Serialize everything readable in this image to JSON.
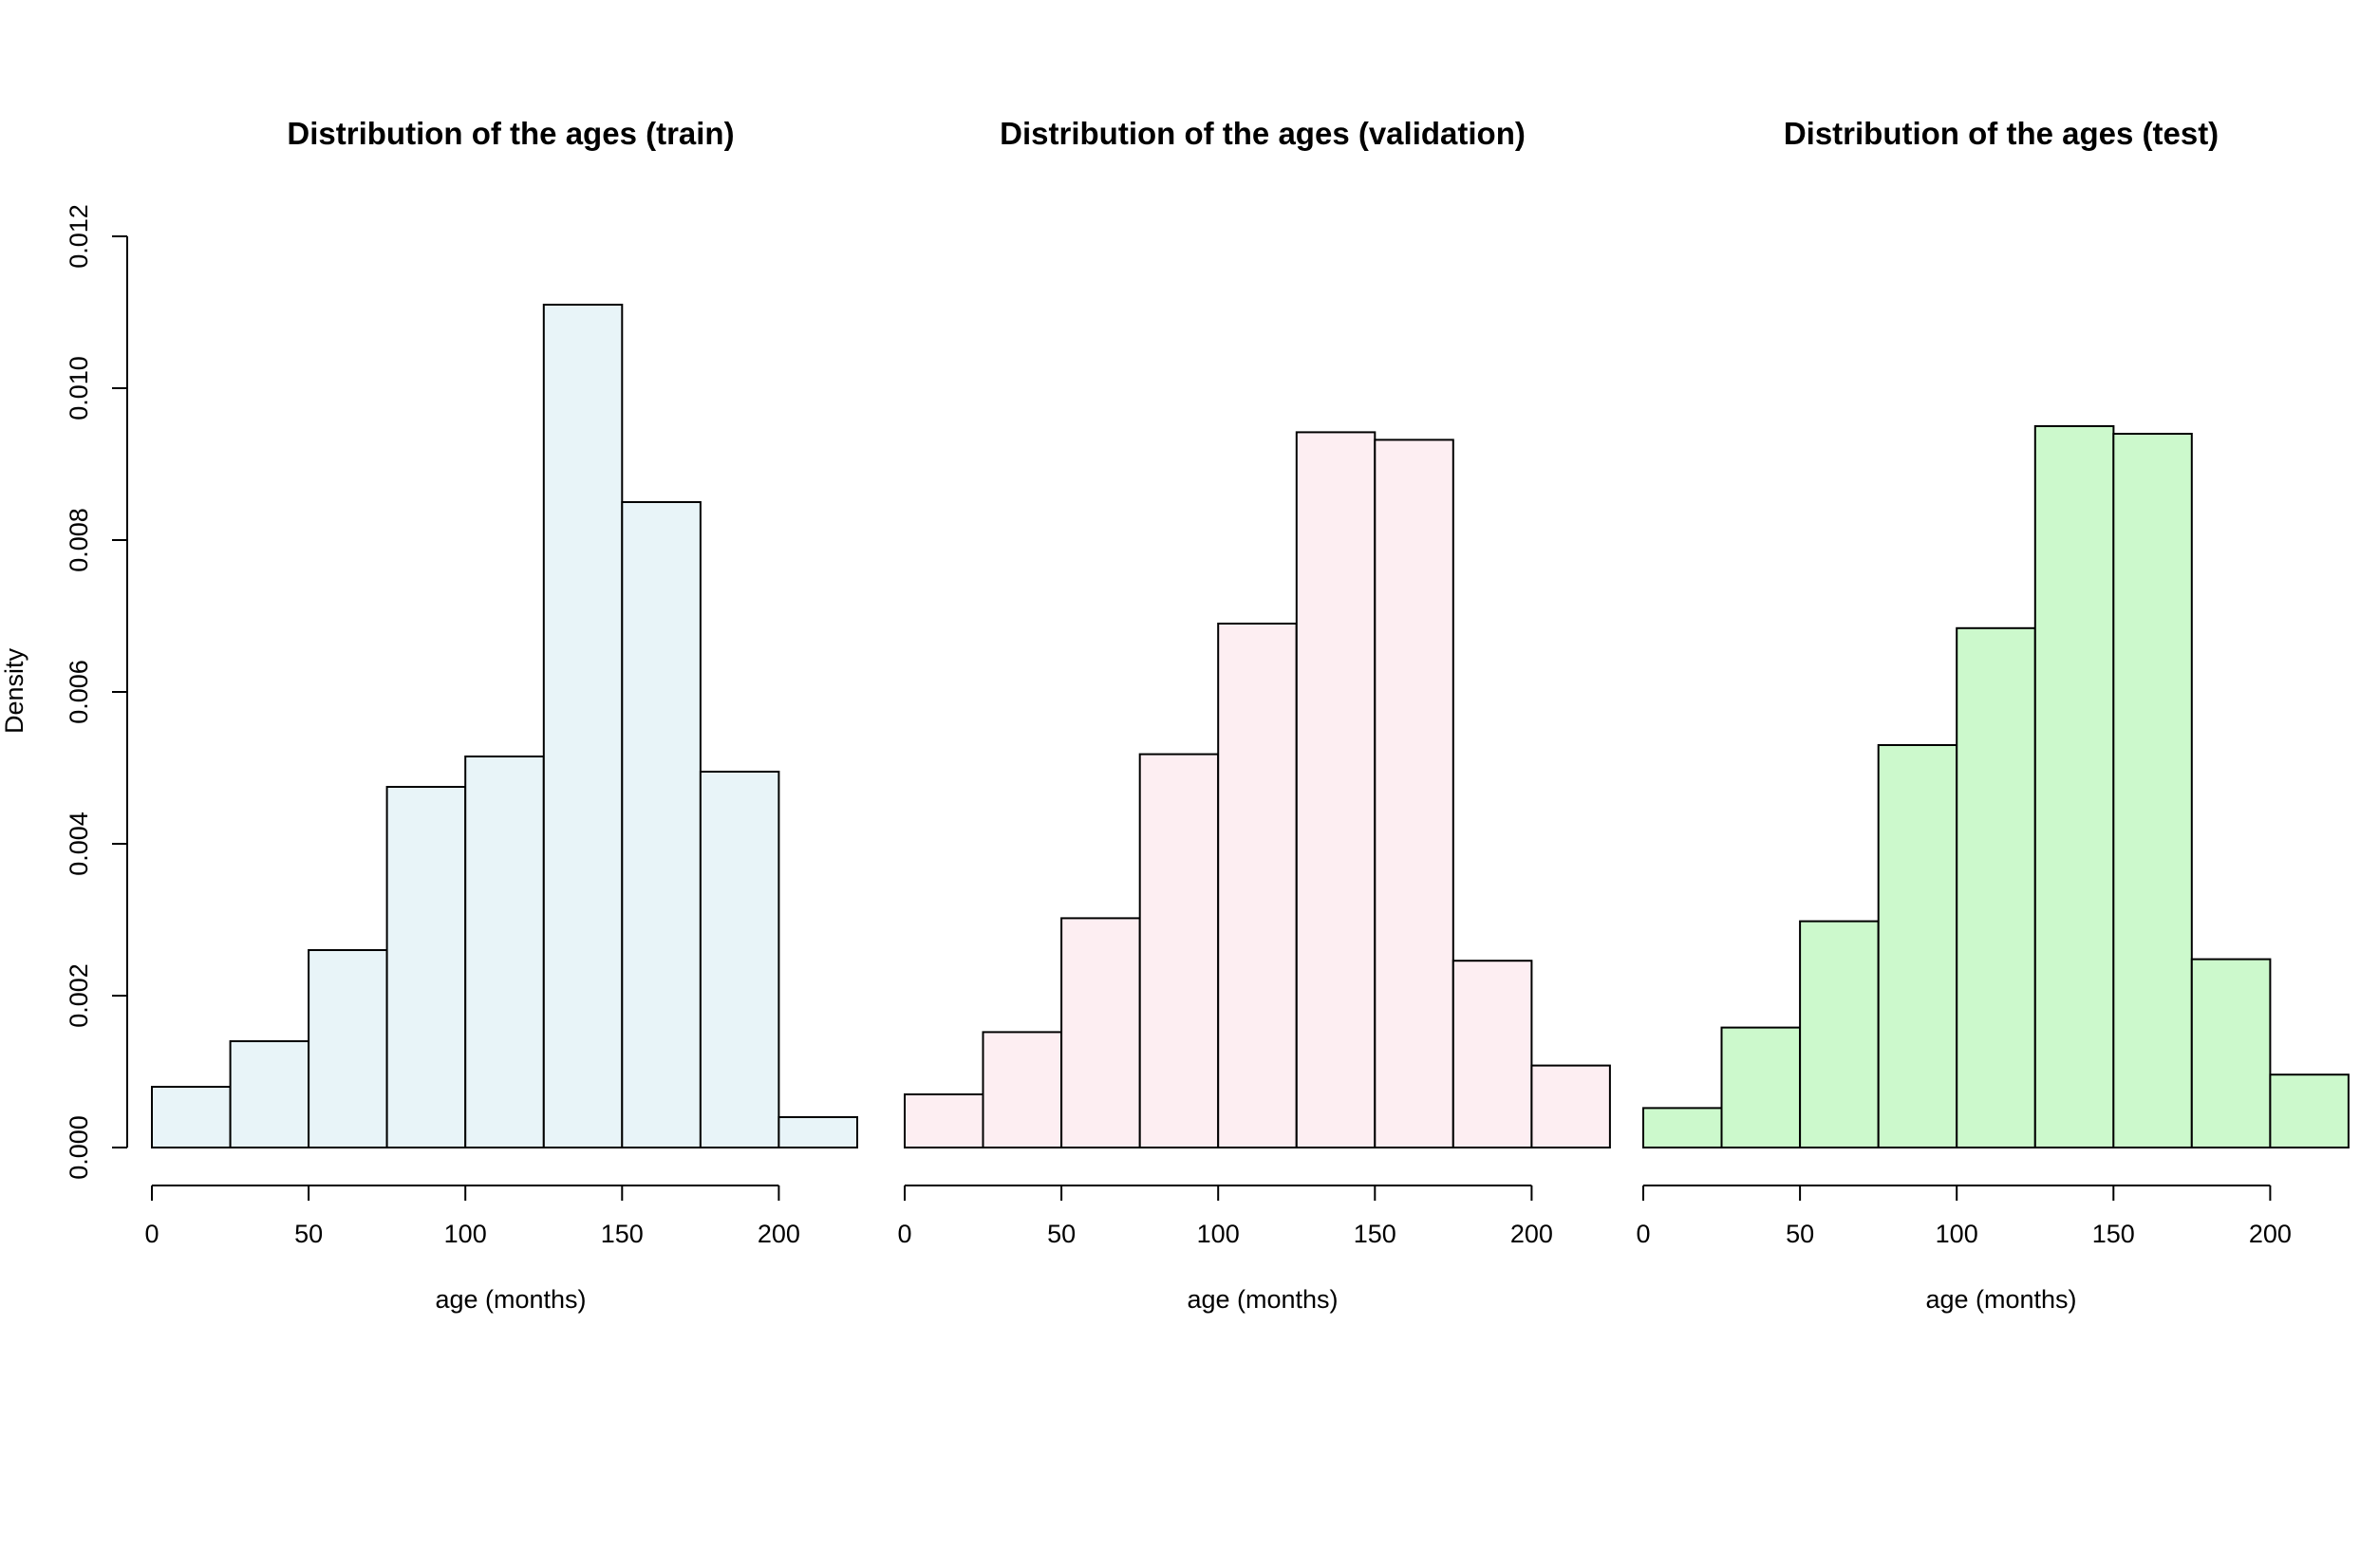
{
  "chart_data": [
    {
      "type": "bar",
      "title": "Distribution of the ages (train)",
      "xlabel": "age (months)",
      "ylabel": "Density",
      "fill": "#e8f4f8",
      "bin_edges": [
        0,
        25,
        50,
        75,
        100,
        125,
        150,
        175,
        200,
        225
      ],
      "values": [
        0.0008,
        0.0014,
        0.0026,
        0.00475,
        0.00515,
        0.0111,
        0.0085,
        0.00495,
        0.0004
      ],
      "xlim": [
        0,
        225
      ],
      "ylim": [
        0,
        0.012
      ],
      "x_ticks": [
        "0",
        "50",
        "100",
        "150",
        "200"
      ],
      "y_ticks": [
        "0.000",
        "0.002",
        "0.004",
        "0.006",
        "0.008",
        "0.010",
        "0.012"
      ],
      "grid": false
    },
    {
      "type": "bar",
      "title": "Distribution of the ages (validation)",
      "xlabel": "age (months)",
      "ylabel": "",
      "fill": "#fdeef2",
      "bin_edges": [
        0,
        25,
        50,
        75,
        100,
        125,
        150,
        175,
        200,
        225
      ],
      "values": [
        0.0007,
        0.00152,
        0.00302,
        0.00518,
        0.0069,
        0.00942,
        0.00932,
        0.00246,
        0.00108
      ],
      "xlim": [
        0,
        225
      ],
      "ylim": [
        0,
        0.012
      ],
      "x_ticks": [
        "0",
        "50",
        "100",
        "150",
        "200"
      ],
      "y_ticks": [],
      "grid": false
    },
    {
      "type": "bar",
      "title": "Distribution of the ages (test)",
      "xlabel": "age (months)",
      "ylabel": "",
      "fill": "#ccf9cc",
      "bin_edges": [
        0,
        25,
        50,
        75,
        100,
        125,
        150,
        175,
        200,
        225
      ],
      "values": [
        0.00052,
        0.00158,
        0.00298,
        0.0053,
        0.00684,
        0.0095,
        0.0094,
        0.00248,
        0.00096
      ],
      "xlim": [
        0,
        225
      ],
      "ylim": [
        0,
        0.012
      ],
      "x_ticks": [
        "0",
        "50",
        "100",
        "150",
        "200"
      ],
      "y_ticks": [],
      "grid": false
    }
  ]
}
